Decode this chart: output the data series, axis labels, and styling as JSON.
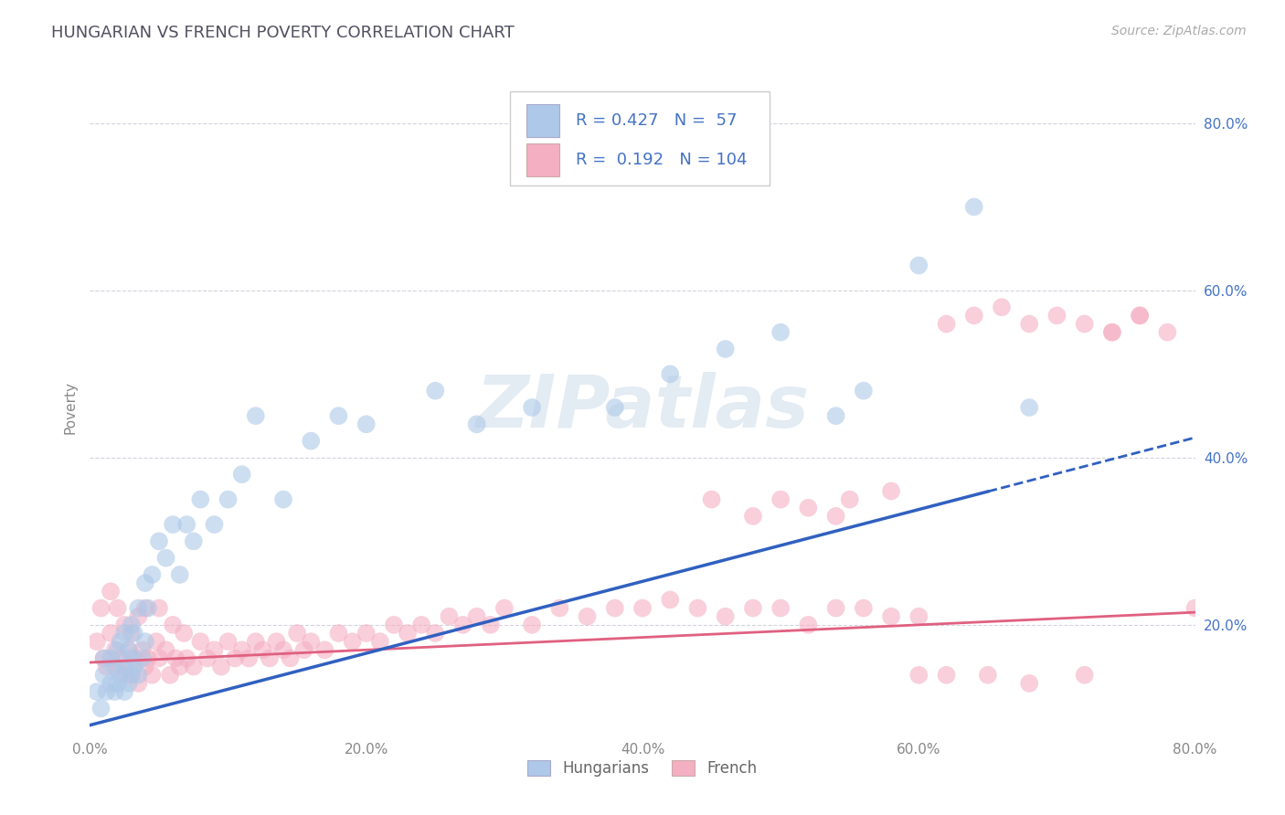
{
  "title": "HUNGARIAN VS FRENCH POVERTY CORRELATION CHART",
  "source_text": "Source: ZipAtlas.com",
  "ylabel": "Poverty",
  "xlim": [
    0.0,
    0.8
  ],
  "ylim": [
    0.07,
    0.85
  ],
  "xticks": [
    0.0,
    0.2,
    0.4,
    0.6,
    0.8
  ],
  "xticklabels": [
    "0.0%",
    "20.0%",
    "40.0%",
    "60.0%",
    "80.0%"
  ],
  "ytick_positions": [
    0.2,
    0.4,
    0.6,
    0.8
  ],
  "yticklabels": [
    "20.0%",
    "40.0%",
    "60.0%",
    "80.0%"
  ],
  "hungarian_color": "#adc8e8",
  "french_color": "#f4afc3",
  "hungarian_line_color": "#3060c0",
  "french_line_color": "#e06080",
  "R_hungarian": 0.427,
  "N_hungarian": 57,
  "R_french": 0.192,
  "N_french": 104,
  "grid_color": "#c8c8d8",
  "background_color": "#ffffff",
  "title_color": "#505060",
  "axis_label_color": "#4472c4",
  "watermark": "ZIPatlas",
  "hungarian_scatter_x": [
    0.005,
    0.008,
    0.01,
    0.01,
    0.012,
    0.015,
    0.015,
    0.018,
    0.018,
    0.02,
    0.02,
    0.022,
    0.022,
    0.025,
    0.025,
    0.025,
    0.028,
    0.028,
    0.03,
    0.03,
    0.03,
    0.032,
    0.032,
    0.035,
    0.035,
    0.038,
    0.04,
    0.04,
    0.042,
    0.045,
    0.05,
    0.055,
    0.06,
    0.065,
    0.07,
    0.075,
    0.08,
    0.09,
    0.1,
    0.11,
    0.12,
    0.14,
    0.16,
    0.18,
    0.2,
    0.25,
    0.28,
    0.32,
    0.38,
    0.42,
    0.46,
    0.5,
    0.54,
    0.56,
    0.6,
    0.64,
    0.68
  ],
  "hungarian_scatter_y": [
    0.12,
    0.1,
    0.14,
    0.16,
    0.12,
    0.13,
    0.16,
    0.12,
    0.15,
    0.13,
    0.17,
    0.14,
    0.18,
    0.12,
    0.15,
    0.19,
    0.13,
    0.17,
    0.14,
    0.16,
    0.2,
    0.15,
    0.19,
    0.14,
    0.22,
    0.16,
    0.18,
    0.25,
    0.22,
    0.26,
    0.3,
    0.28,
    0.32,
    0.26,
    0.32,
    0.3,
    0.35,
    0.32,
    0.35,
    0.38,
    0.45,
    0.35,
    0.42,
    0.45,
    0.44,
    0.48,
    0.44,
    0.46,
    0.46,
    0.5,
    0.53,
    0.55,
    0.45,
    0.48,
    0.63,
    0.7,
    0.46
  ],
  "french_scatter_x": [
    0.005,
    0.008,
    0.01,
    0.012,
    0.015,
    0.015,
    0.018,
    0.02,
    0.02,
    0.022,
    0.025,
    0.025,
    0.028,
    0.03,
    0.03,
    0.032,
    0.035,
    0.035,
    0.038,
    0.04,
    0.04,
    0.042,
    0.045,
    0.048,
    0.05,
    0.05,
    0.055,
    0.058,
    0.06,
    0.062,
    0.065,
    0.068,
    0.07,
    0.075,
    0.08,
    0.085,
    0.09,
    0.095,
    0.1,
    0.105,
    0.11,
    0.115,
    0.12,
    0.125,
    0.13,
    0.135,
    0.14,
    0.145,
    0.15,
    0.155,
    0.16,
    0.17,
    0.18,
    0.19,
    0.2,
    0.21,
    0.22,
    0.23,
    0.24,
    0.25,
    0.26,
    0.27,
    0.28,
    0.29,
    0.3,
    0.32,
    0.34,
    0.36,
    0.38,
    0.4,
    0.42,
    0.44,
    0.46,
    0.48,
    0.5,
    0.52,
    0.54,
    0.56,
    0.58,
    0.6,
    0.62,
    0.64,
    0.66,
    0.68,
    0.7,
    0.72,
    0.74,
    0.76,
    0.78,
    0.8,
    0.62,
    0.65,
    0.6,
    0.68,
    0.72,
    0.74,
    0.76,
    0.55,
    0.58,
    0.48,
    0.5,
    0.52,
    0.54,
    0.45
  ],
  "french_scatter_y": [
    0.18,
    0.22,
    0.16,
    0.15,
    0.19,
    0.24,
    0.17,
    0.15,
    0.22,
    0.16,
    0.14,
    0.2,
    0.17,
    0.14,
    0.19,
    0.16,
    0.13,
    0.21,
    0.17,
    0.15,
    0.22,
    0.16,
    0.14,
    0.18,
    0.16,
    0.22,
    0.17,
    0.14,
    0.2,
    0.16,
    0.15,
    0.19,
    0.16,
    0.15,
    0.18,
    0.16,
    0.17,
    0.15,
    0.18,
    0.16,
    0.17,
    0.16,
    0.18,
    0.17,
    0.16,
    0.18,
    0.17,
    0.16,
    0.19,
    0.17,
    0.18,
    0.17,
    0.19,
    0.18,
    0.19,
    0.18,
    0.2,
    0.19,
    0.2,
    0.19,
    0.21,
    0.2,
    0.21,
    0.2,
    0.22,
    0.2,
    0.22,
    0.21,
    0.22,
    0.22,
    0.23,
    0.22,
    0.21,
    0.22,
    0.22,
    0.2,
    0.22,
    0.22,
    0.21,
    0.21,
    0.56,
    0.57,
    0.58,
    0.56,
    0.57,
    0.56,
    0.55,
    0.57,
    0.55,
    0.22,
    0.14,
    0.14,
    0.14,
    0.13,
    0.14,
    0.55,
    0.57,
    0.35,
    0.36,
    0.33,
    0.35,
    0.34,
    0.33,
    0.35
  ]
}
